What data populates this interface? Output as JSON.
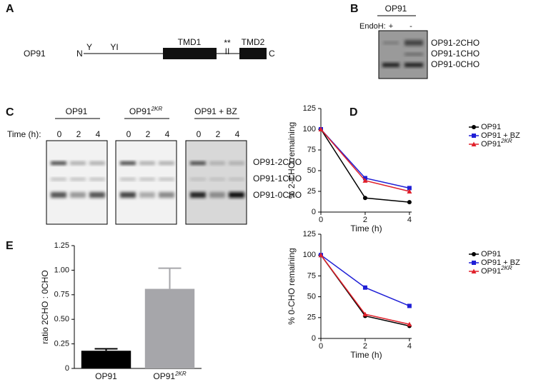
{
  "panel_a": {
    "label": "A",
    "protein": "OP91",
    "n_term": "N",
    "c_term": "C",
    "glyc_sites": [
      "Y",
      "YI"
    ],
    "tmd1": "TMD1",
    "tmd2": "TMD2",
    "mutations": "**",
    "mutation_marks": "II"
  },
  "panel_b": {
    "label": "B",
    "title": "OP91",
    "endoh_label": "EndoH:",
    "lanes": [
      "+",
      "-"
    ],
    "bands": [
      "OP91-2CHO",
      "OP91-1CHO",
      "OP91-0CHO"
    ]
  },
  "panel_c": {
    "label": "C",
    "time_label": "Time (h):",
    "groups": [
      {
        "name": "OP91",
        "times": [
          0,
          2,
          4
        ]
      },
      {
        "name": "OP91",
        "superscript": "2KR",
        "times": [
          0,
          2,
          4
        ]
      },
      {
        "name": "OP91 + BZ",
        "times": [
          0,
          2,
          4
        ]
      }
    ],
    "bands": [
      "OP91-2CHO",
      "OP91-1CHO",
      "OP91-0CHO"
    ]
  },
  "panel_d_label": "D",
  "panel_e_label": "E",
  "chart_data": [
    {
      "type": "line",
      "ylabel": "% 2-CHO remaining",
      "xlabel": "Time (h)",
      "x": [
        0,
        2,
        4
      ],
      "xlim": [
        0,
        4.1
      ],
      "xticks": [
        0,
        2,
        4
      ],
      "ylim": [
        0,
        125
      ],
      "yticks": [
        0,
        25,
        50,
        75,
        100,
        125
      ],
      "legend": "right",
      "series": [
        {
          "name": "OP91",
          "color": "#000000",
          "marker": "circle",
          "values": [
            100,
            17,
            12
          ]
        },
        {
          "name": "OP91 + BZ",
          "color": "#1f1fd6",
          "marker": "square",
          "values": [
            100,
            41,
            29
          ]
        },
        {
          "name": "OP91",
          "superscript": "2KR",
          "color": "#e0202a",
          "marker": "triangle",
          "values": [
            100,
            38,
            25
          ]
        }
      ]
    },
    {
      "type": "line",
      "ylabel": "% 0-CHO remaining",
      "xlabel": "Time (h)",
      "x": [
        0,
        2,
        4
      ],
      "xlim": [
        0,
        4.1
      ],
      "xticks": [
        0,
        2,
        4
      ],
      "ylim": [
        0,
        125
      ],
      "yticks": [
        0,
        25,
        50,
        75,
        100,
        125
      ],
      "legend": "right",
      "series": [
        {
          "name": "OP91",
          "color": "#000000",
          "marker": "circle",
          "values": [
            100,
            27,
            15
          ]
        },
        {
          "name": "OP91 + BZ",
          "color": "#1f1fd6",
          "marker": "square",
          "values": [
            100,
            61,
            39
          ]
        },
        {
          "name": "OP91",
          "superscript": "2KR",
          "color": "#e0202a",
          "marker": "triangle",
          "values": [
            100,
            29,
            17
          ]
        }
      ]
    },
    {
      "type": "bar",
      "ylabel": "ratio 2CHO : 0CHO",
      "categories": [
        "OP91",
        "OP91"
      ],
      "category_superscripts": [
        null,
        "2KR"
      ],
      "values": [
        0.18,
        0.81
      ],
      "errors": [
        0.02,
        0.21
      ],
      "colors": [
        "#000000",
        "#a6a6aa"
      ],
      "ylim": [
        0,
        1.25
      ],
      "yticks": [
        0,
        0.25,
        {
          "value": 0.5,
          "label": "0.50"
        },
        0.75,
        {
          "value": 1,
          "label": "1.00"
        },
        1.25
      ]
    }
  ]
}
